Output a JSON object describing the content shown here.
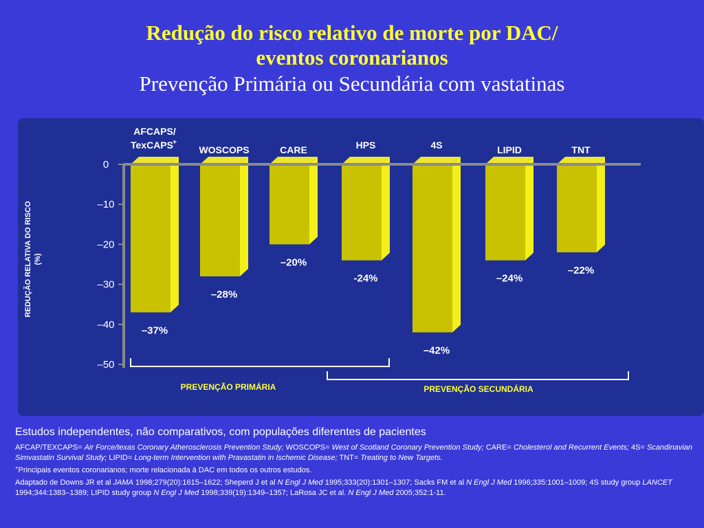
{
  "title": {
    "line1": "Redução do risco relativo de morte por DAC/",
    "line2": "eventos coronarianos",
    "subtitle": "Prevenção Primária ou Secundária com vastatinas"
  },
  "chart_data": {
    "type": "bar",
    "categories": [
      "AFCAPS/ TexCAPS+",
      "WOSCOPS",
      "CARE",
      "HPS",
      "4S",
      "LIPID",
      "TNT"
    ],
    "category_lines": [
      [
        "AFCAPS/",
        "TexCAPS",
        "+"
      ],
      [
        "WOSCOPS"
      ],
      [
        "CARE"
      ],
      [
        "HPS"
      ],
      [
        "4S"
      ],
      [
        "LIPID"
      ],
      [
        "TNT"
      ]
    ],
    "values": [
      -37,
      -28,
      -20,
      -24,
      -42,
      -24,
      -22
    ],
    "data_labels": [
      "–37%",
      "–28%",
      "–20%",
      "-24%",
      "–42%",
      "–24%",
      "–22%"
    ],
    "ylabel_line1": "REDUÇÃO RELATIVA DO RISCO",
    "ylabel_line2": "(%)",
    "ylim": [
      -50,
      0
    ],
    "yticks": [
      0,
      -10,
      -20,
      -30,
      -40,
      -50
    ],
    "ytick_labels": [
      "0",
      "–10",
      "–20",
      "–30",
      "–40",
      "–50"
    ],
    "groups": [
      {
        "label": "PREVENÇÃO PRIMÁRIA",
        "categories": [
          "AFCAPS/ TexCAPS+",
          "WOSCOPS",
          "CARE",
          "HPS"
        ]
      },
      {
        "label": "PREVENÇÃO SECUNDÁRIA",
        "categories": [
          "HPS",
          "4S",
          "LIPID",
          "TNT"
        ]
      }
    ],
    "colors": {
      "bar_front": "#c8c200",
      "bar_side": "#f3ef1a",
      "bar_top": "#ece62c",
      "axis": "#8a8a8a",
      "group_label": "#ffff33"
    }
  },
  "footnotes": {
    "main": "Estudos independentes, não comparativos, com populações diferentes de pacientes",
    "abbrev": [
      {
        "term": "AFCAP/TEXCAPS",
        "def": "Air Force/texas Coronary Atherosclerosis Prevention Study;"
      },
      {
        "term": "WOSCOPS",
        "def": "West of Scotland Coronary Prevention Study;"
      },
      {
        "term": "CARE",
        "def": "Cholesterol and Recurrent Events;"
      },
      {
        "term": "4S",
        "def": "Scandinavian Simvastatin Survival Study;"
      },
      {
        "term": "LIPID",
        "def": "Long-term Intervention with Pravastatin in Ischemic Disease;"
      },
      {
        "term": "TNT",
        "def": "Treating to New Targets."
      }
    ],
    "plus_marker": "+",
    "plus_note": "Principais eventos coronarianos; morte relacionada à DAC em todos os outros estudos.",
    "refs": [
      {
        "text": " Adaptado de  Downs JR et al ",
        "italic": false
      },
      {
        "text": "JAMA",
        "italic": true
      },
      {
        "text": " 1998;279(20):1615–1622; Sheperd J et al ",
        "italic": false
      },
      {
        "text": "N Engl J Med",
        "italic": true
      },
      {
        "text": " 1995;333(20):1301–1307; Sacks FM et al ",
        "italic": false
      },
      {
        "text": "N Engl J Med",
        "italic": true
      },
      {
        "text": " 1996;335:1001–1009; 4S study group ",
        "italic": false
      },
      {
        "text": "LANCET",
        "italic": true
      },
      {
        "text": " 1994;344:1383–1389; LIPID study group ",
        "italic": false
      },
      {
        "text": "N Engl J Med",
        "italic": true
      },
      {
        "text": " 1998;339(19):1349–1357; LaRosa JC et al. ",
        "italic": false
      },
      {
        "text": "N Engl J Med",
        "italic": true
      },
      {
        "text": " 2005;352:1-11.",
        "italic": false
      }
    ]
  }
}
